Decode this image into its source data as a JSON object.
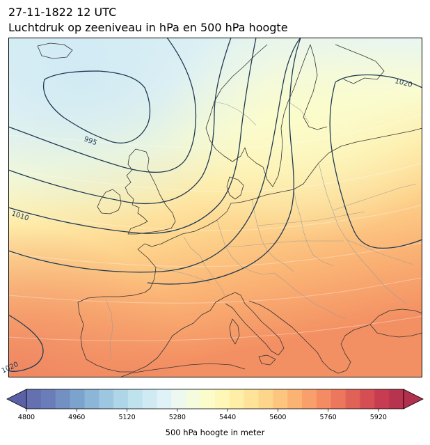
{
  "header": {
    "datetime": "27-11-1822 12 UTC",
    "subtitle": "Luchtdruk op zeeniveau in hPa en 500 hPa hoogte"
  },
  "map": {
    "region": "Europe / North Atlantic",
    "isobar_color": "#1f3a54",
    "coastline_color": "#333333",
    "border_color": "#9a9a9a",
    "isobar_labels": [
      "995",
      "1010",
      "1020",
      "1020"
    ]
  },
  "colorbar": {
    "label": "500 hPa hoogte in meter",
    "min": 4800,
    "max": 6000,
    "step": 40,
    "ticks": [
      "4800",
      "4960",
      "5120",
      "5280",
      "5440",
      "5600",
      "5760",
      "5920"
    ],
    "extend": "both",
    "colormap": "RdYlBu_r",
    "colors": [
      "#6470b0",
      "#6a7db8",
      "#7390c3",
      "#7ba3cd",
      "#8bb6d8",
      "#9dc7e0",
      "#aed6e8",
      "#bfe2ef",
      "#cfeaf3",
      "#dff2f7",
      "#ecf8f0",
      "#f5fbdd",
      "#fbfcc9",
      "#fef7b7",
      "#feeea6",
      "#fee398",
      "#fdd58b",
      "#fdc57e",
      "#fbb374",
      "#f89f6b",
      "#f48b63",
      "#ec775c",
      "#e06156",
      "#d44e53",
      "#c73c50",
      "#b8334e"
    ]
  }
}
